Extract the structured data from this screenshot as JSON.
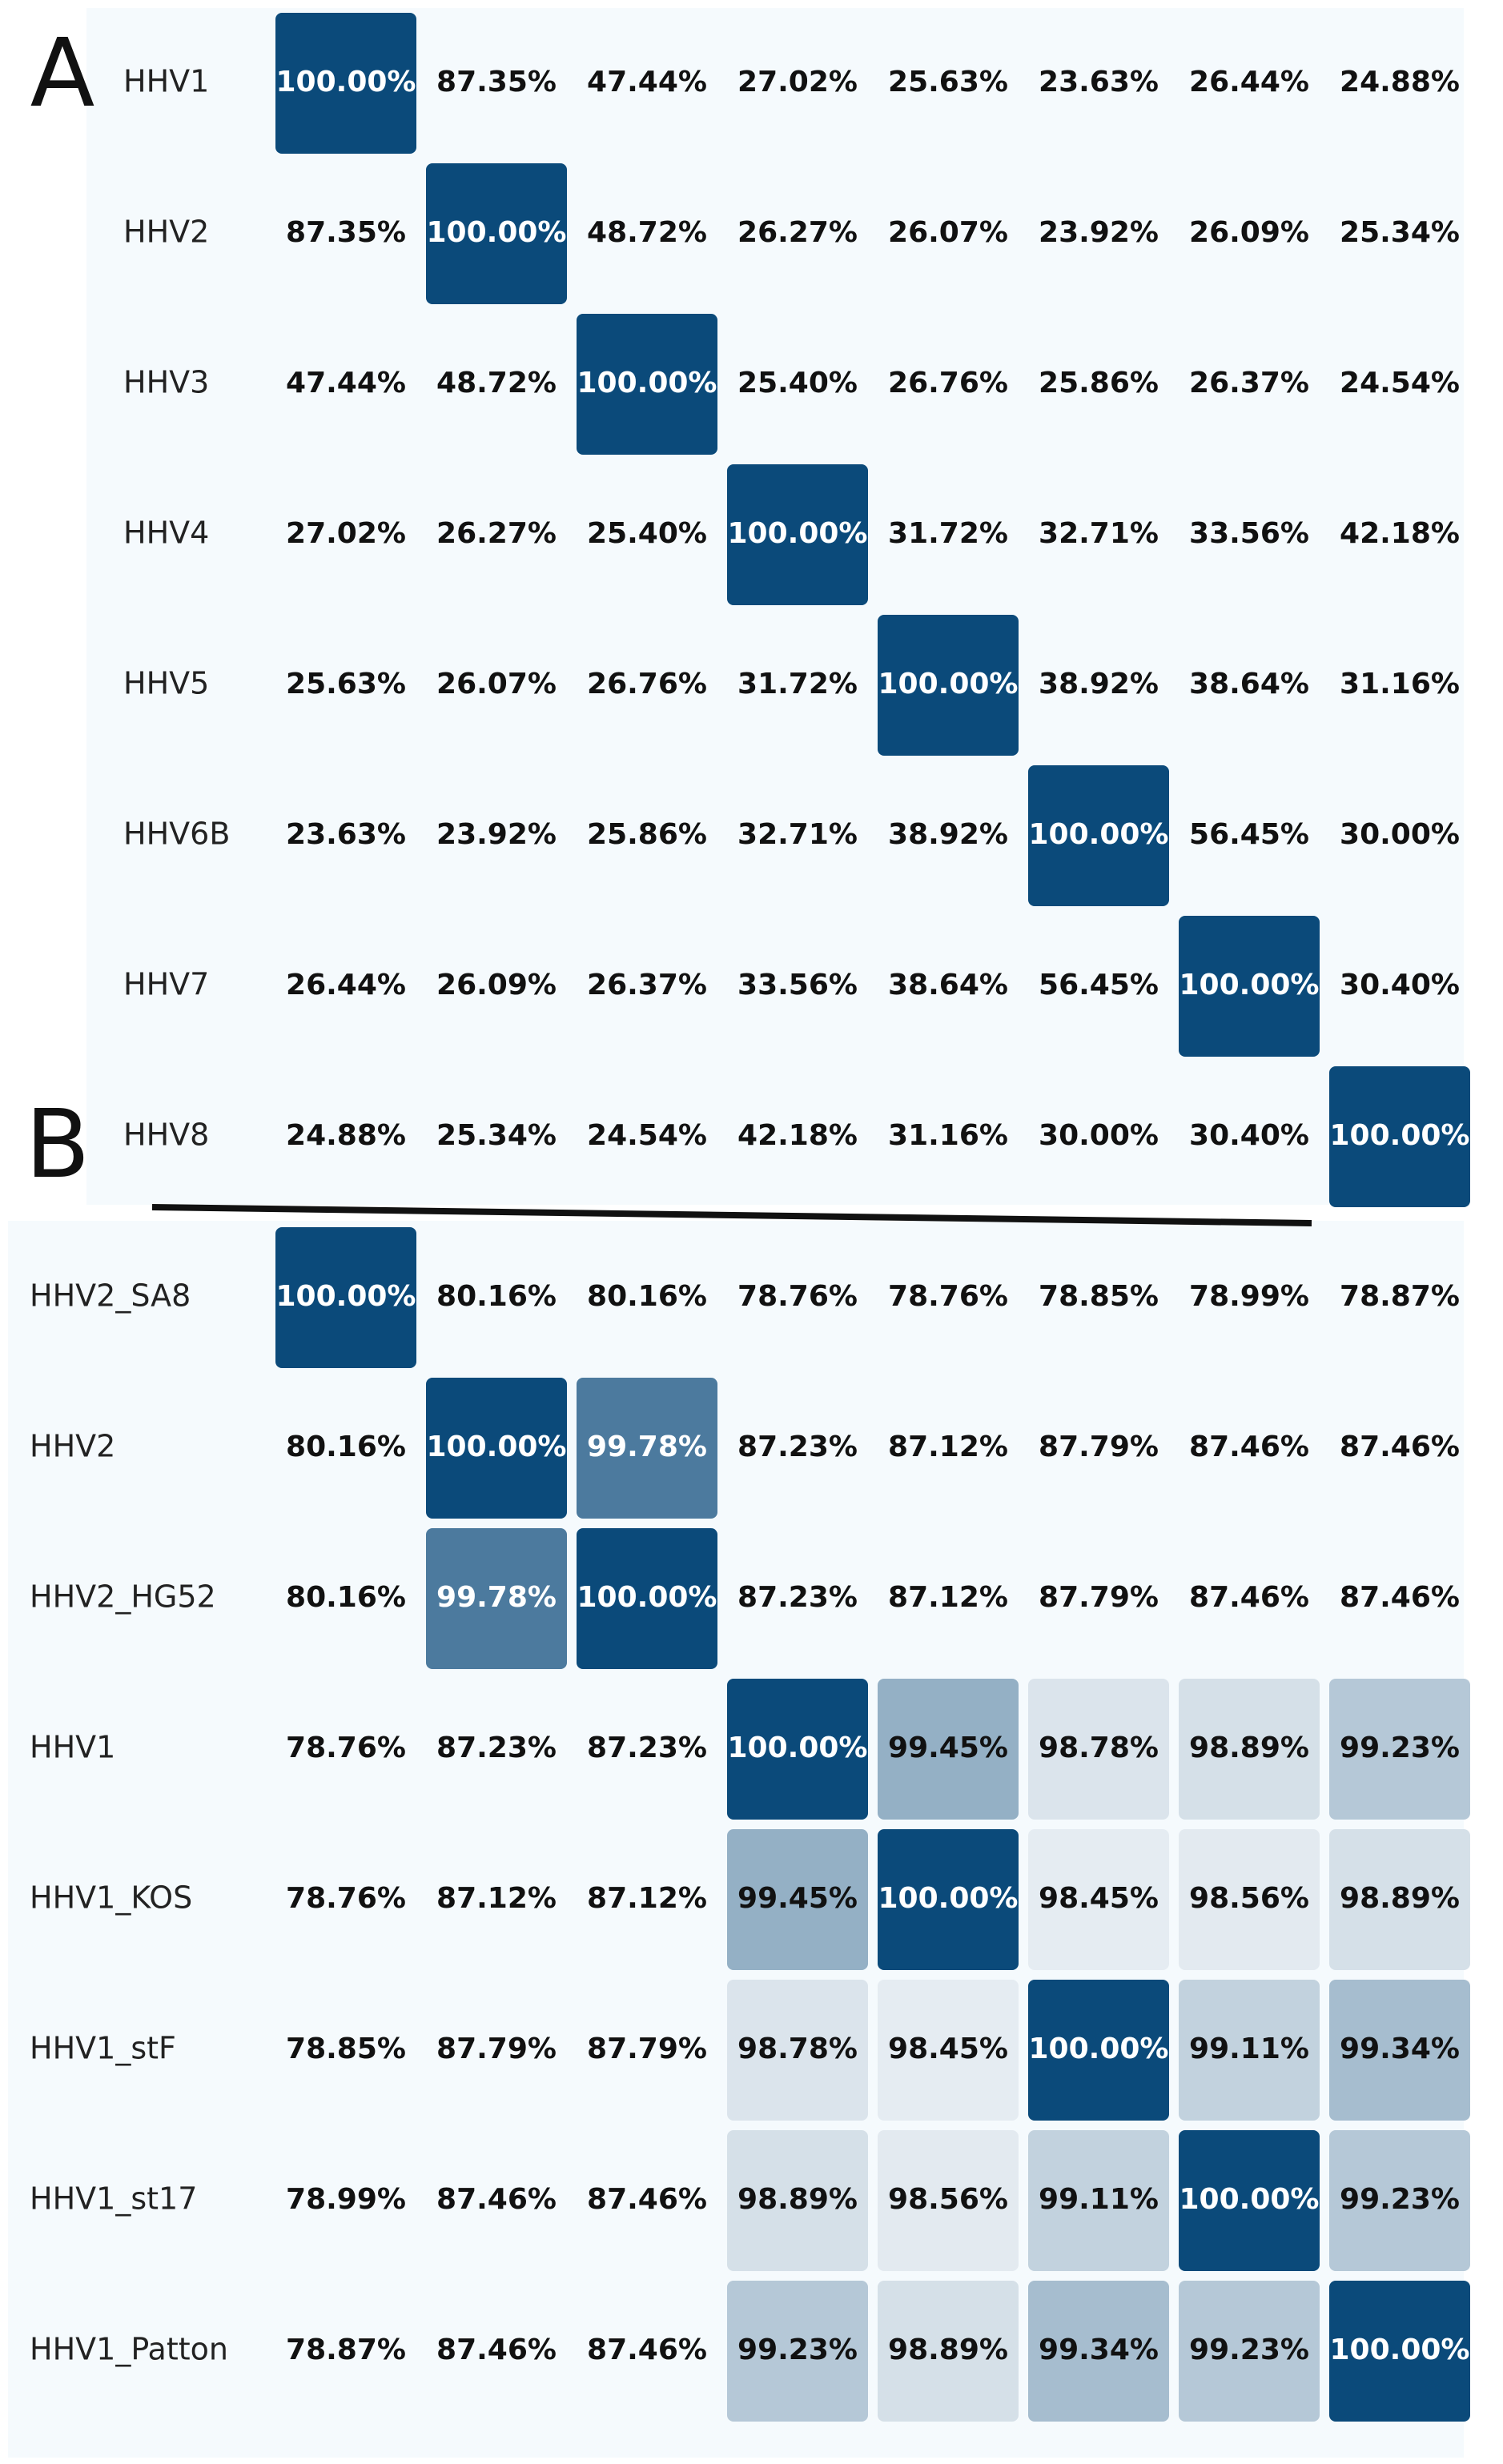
{
  "chart_data": [
    {
      "type": "heatmap",
      "panel": "A",
      "rows": [
        "HHV1",
        "HHV2",
        "HHV3",
        "HHV4",
        "HHV5",
        "HHV6B",
        "HHV7",
        "HHV8"
      ],
      "values": [
        [
          100,
          87.35,
          47.44,
          27.02,
          25.63,
          23.63,
          26.44,
          24.88
        ],
        [
          87.35,
          100,
          48.72,
          26.27,
          26.07,
          23.92,
          26.09,
          25.34
        ],
        [
          47.44,
          48.72,
          100,
          25.4,
          26.76,
          25.86,
          26.37,
          24.54
        ],
        [
          27.02,
          26.27,
          25.4,
          100,
          31.72,
          32.71,
          33.56,
          42.18
        ],
        [
          25.63,
          26.07,
          26.76,
          31.72,
          100,
          38.92,
          38.64,
          31.16
        ],
        [
          23.63,
          23.92,
          25.86,
          32.71,
          38.92,
          100,
          56.45,
          30
        ],
        [
          26.44,
          26.09,
          26.37,
          33.56,
          38.64,
          56.45,
          100,
          30.4
        ],
        [
          24.88,
          25.34,
          24.54,
          42.18,
          31.16,
          30,
          30.4,
          100
        ]
      ],
      "value_labels": [
        [
          "100.00%",
          "87.35%",
          "47.44%",
          "27.02%",
          "25.63%",
          "23.63%",
          "26.44%",
          "24.88%"
        ],
        [
          "87.35%",
          "100.00%",
          "48.72%",
          "26.27%",
          "26.07%",
          "23.92%",
          "26.09%",
          "25.34%"
        ],
        [
          "47.44%",
          "48.72%",
          "100.00%",
          "25.40%",
          "26.76%",
          "25.86%",
          "26.37%",
          "24.54%"
        ],
        [
          "27.02%",
          "26.27%",
          "25.40%",
          "100.00%",
          "31.72%",
          "32.71%",
          "33.56%",
          "42.18%"
        ],
        [
          "25.63%",
          "26.07%",
          "26.76%",
          "31.72%",
          "100.00%",
          "38.92%",
          "38.64%",
          "31.16%"
        ],
        [
          "23.63%",
          "23.92%",
          "25.86%",
          "32.71%",
          "38.92%",
          "100.00%",
          "56.45%",
          "30.00%"
        ],
        [
          "26.44%",
          "26.09%",
          "26.37%",
          "33.56%",
          "38.64%",
          "56.45%",
          "100.00%",
          "30.40%"
        ],
        [
          "24.88%",
          "25.34%",
          "24.54%",
          "42.18%",
          "31.16%",
          "30.00%",
          "30.40%",
          "100.00%"
        ]
      ],
      "colorscale": {
        "low": "#e8eef3",
        "high": "#0b4a7a",
        "range": [
          99,
          100
        ],
        "gamma": 3
      }
    },
    {
      "type": "heatmap",
      "panel": "B",
      "rows": [
        "HHV2_SA8",
        "HHV2",
        "HHV2_HG52",
        "HHV1",
        "HHV1_KOS",
        "HHV1_stF",
        "HHV1_st17",
        "HHV1_Patton"
      ],
      "values": [
        [
          100,
          80.16,
          80.16,
          78.76,
          78.76,
          78.85,
          78.99,
          78.87
        ],
        [
          80.16,
          100,
          99.78,
          87.23,
          87.12,
          87.79,
          87.46,
          87.46
        ],
        [
          80.16,
          99.78,
          100,
          87.23,
          87.12,
          87.79,
          87.46,
          87.46
        ],
        [
          78.76,
          87.23,
          87.23,
          100,
          99.45,
          98.78,
          98.89,
          99.23
        ],
        [
          78.76,
          87.12,
          87.12,
          99.45,
          100,
          98.45,
          98.56,
          98.89
        ],
        [
          78.85,
          87.79,
          87.79,
          98.78,
          98.45,
          100,
          99.11,
          99.34
        ],
        [
          78.99,
          87.46,
          87.46,
          98.89,
          98.56,
          99.11,
          100,
          99.23
        ],
        [
          78.87,
          87.46,
          87.46,
          99.23,
          98.89,
          99.34,
          99.23,
          100
        ]
      ],
      "value_labels": [
        [
          "100.00%",
          "80.16%",
          "80.16%",
          "78.76%",
          "78.76%",
          "78.85%",
          "78.99%",
          "78.87%"
        ],
        [
          "80.16%",
          "100.00%",
          "99.78%",
          "87.23%",
          "87.12%",
          "87.79%",
          "87.46%",
          "87.46%"
        ],
        [
          "80.16%",
          "99.78%",
          "100.00%",
          "87.23%",
          "87.12%",
          "87.79%",
          "87.46%",
          "87.46%"
        ],
        [
          "78.76%",
          "87.23%",
          "87.23%",
          "100.00%",
          "99.45%",
          "98.78%",
          "98.89%",
          "99.23%"
        ],
        [
          "78.76%",
          "87.12%",
          "87.12%",
          "99.45%",
          "100.00%",
          "98.45%",
          "98.56%",
          "98.89%"
        ],
        [
          "78.85%",
          "87.79%",
          "87.79%",
          "98.78%",
          "98.45%",
          "100.00%",
          "99.11%",
          "99.34%"
        ],
        [
          "78.99%",
          "87.46%",
          "87.46%",
          "98.89%",
          "98.56%",
          "99.11%",
          "100.00%",
          "99.23%"
        ],
        [
          "78.87%",
          "87.46%",
          "87.46%",
          "99.23%",
          "98.89%",
          "99.34%",
          "99.23%",
          "100.00%"
        ]
      ],
      "colorscale": {
        "low": "#e8eef3",
        "high": "#0b4a7a",
        "range": [
          98,
          100
        ],
        "gamma": 3
      }
    }
  ]
}
